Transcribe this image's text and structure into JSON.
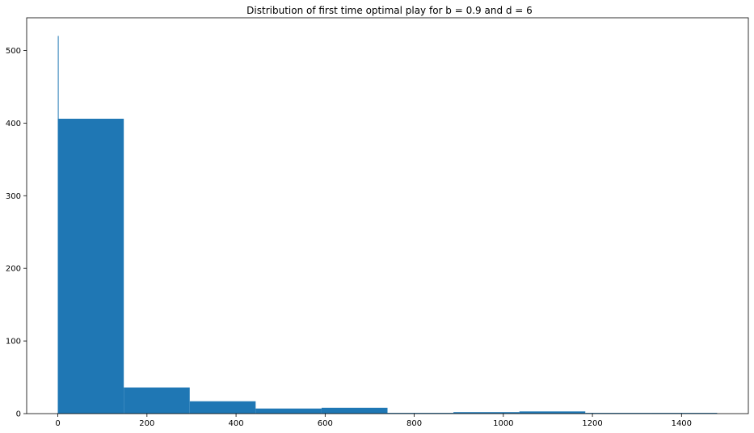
{
  "chart_data": {
    "type": "bar",
    "title": "Distribution of first time optimal play for b = 0.9 and d = 6",
    "xlabel": "",
    "ylabel": "",
    "xlim": [
      -70,
      1550
    ],
    "ylim": [
      0,
      545
    ],
    "xticks": [
      0,
      200,
      400,
      600,
      800,
      1000,
      1200,
      1400
    ],
    "yticks": [
      0,
      100,
      200,
      300,
      400,
      500
    ],
    "bar_color": "#1f77b4",
    "grid": false,
    "bins": [
      {
        "x0": 0,
        "x1": 148,
        "count": 406
      },
      {
        "x0": 148,
        "x1": 296,
        "count": 36
      },
      {
        "x0": 296,
        "x1": 444,
        "count": 17
      },
      {
        "x0": 444,
        "x1": 592,
        "count": 7
      },
      {
        "x0": 592,
        "x1": 740,
        "count": 8
      },
      {
        "x0": 740,
        "x1": 888,
        "count": 1
      },
      {
        "x0": 888,
        "x1": 1036,
        "count": 2
      },
      {
        "x0": 1036,
        "x1": 1184,
        "count": 3
      },
      {
        "x0": 1184,
        "x1": 1332,
        "count": 1
      },
      {
        "x0": 1332,
        "x1": 1480,
        "count": 1
      }
    ],
    "spike": {
      "x0": 0,
      "x1": 1.5,
      "count": 520
    }
  }
}
